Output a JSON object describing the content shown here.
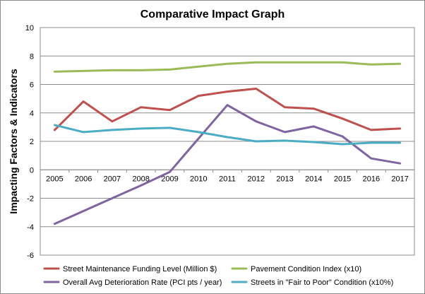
{
  "chart_data": {
    "type": "line",
    "title": "Comparative Impact Graph",
    "xlabel": "",
    "ylabel": "Impacting Factors & Indicators",
    "ylim": [
      -6,
      10
    ],
    "yticks": [
      "-6",
      "-4",
      "-2",
      "0",
      "2",
      "4",
      "6",
      "8",
      "10"
    ],
    "categories": [
      "2005",
      "2006",
      "2007",
      "2008",
      "2009",
      "2010",
      "2011",
      "2012",
      "2013",
      "2014",
      "2015",
      "2016",
      "2017"
    ],
    "grid": "horizontal",
    "legend_position": "bottom",
    "series": [
      {
        "name": "Street Maintenance Funding Level (Million $)",
        "color": "#c0504d",
        "values": [
          2.8,
          4.8,
          3.4,
          4.4,
          4.2,
          5.2,
          5.5,
          5.7,
          4.4,
          4.3,
          3.6,
          2.8,
          2.9
        ]
      },
      {
        "name": "Pavement Condition Index (x10)",
        "color": "#9bbb59",
        "values": [
          6.9,
          6.95,
          7.0,
          7.0,
          7.05,
          7.25,
          7.45,
          7.55,
          7.55,
          7.55,
          7.55,
          7.4,
          7.45
        ]
      },
      {
        "name": "Overall Avg Deterioration Rate (PCI pts / year)",
        "color": "#8064a2",
        "values": [
          -3.8,
          -2.9,
          -2.0,
          -1.1,
          -0.15,
          2.2,
          4.55,
          3.4,
          2.65,
          3.05,
          2.35,
          0.8,
          0.45
        ]
      },
      {
        "name": "Streets in \"Fair to Poor\" Condition  (x10%)",
        "color": "#4bacc6",
        "values": [
          3.15,
          2.65,
          2.8,
          2.9,
          2.95,
          2.65,
          2.3,
          2.0,
          2.05,
          1.95,
          1.8,
          1.9,
          1.9
        ]
      }
    ]
  }
}
